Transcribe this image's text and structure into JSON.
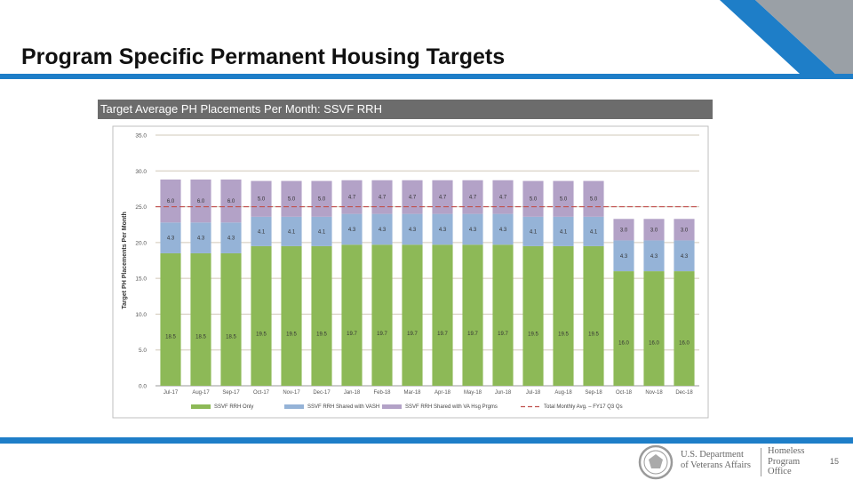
{
  "slide": {
    "title": "Program Specific Permanent Housing Targets",
    "page_number": "15"
  },
  "footer": {
    "dept_line1": "U.S. Department",
    "dept_line2": "of Veterans Affairs",
    "office_line1": "Homeless",
    "office_line2": "Program",
    "office_line3": "Office"
  },
  "colors": {
    "brand_blue": "#1e7ec8",
    "corner_gray": "#9aa0a6",
    "series_rrh_only": "#8db957",
    "series_vash": "#95b3d7",
    "series_va_grants": "#b3a2c7",
    "target_line": "#c0504d"
  },
  "chart_data": {
    "type": "bar",
    "stacked": true,
    "title": "Target Average PH Placements Per Month: SSVF RRH",
    "xlabel": "",
    "ylabel": "Target PH Placements Per Month",
    "ylim": [
      0,
      35
    ],
    "yticks": [
      "0.0",
      "5.0",
      "10.0",
      "15.0",
      "20.0",
      "25.0",
      "30.0",
      "35.0"
    ],
    "grid": true,
    "legend_position": "bottom",
    "categories": [
      "Jul-17",
      "Aug-17",
      "Sep-17",
      "Oct-17",
      "Nov-17",
      "Dec-17",
      "Jan-18",
      "Feb-18",
      "Mar-18",
      "Apr-18",
      "May-18",
      "Jun-18",
      "Jul-18",
      "Aug-18",
      "Sep-18",
      "Oct-18",
      "Nov-18",
      "Dec-18"
    ],
    "series": [
      {
        "name": "SSVF RRH Only",
        "color": "#8db957",
        "values": [
          18.5,
          18.5,
          18.5,
          19.5,
          19.5,
          19.5,
          19.7,
          19.7,
          19.7,
          19.7,
          19.7,
          19.7,
          19.5,
          19.5,
          19.5,
          16.0,
          16.0,
          16.0
        ],
        "labels": [
          "18.5",
          "18.5",
          "18.5",
          "19.5",
          "19.5",
          "19.5",
          "19.7",
          "19.7",
          "19.7",
          "19.7",
          "19.7",
          "19.7",
          "19.5",
          "19.5",
          "19.5",
          "16.0",
          "16.0",
          "16.0"
        ]
      },
      {
        "name": "SSVF RRH Shared with VASH",
        "color": "#95b3d7",
        "values": [
          4.3,
          4.3,
          4.3,
          4.1,
          4.1,
          4.1,
          4.3,
          4.3,
          4.3,
          4.3,
          4.3,
          4.3,
          4.1,
          4.1,
          4.1,
          4.3,
          4.3,
          4.3
        ],
        "labels": [
          "4.3",
          "4.3",
          "4.3",
          "4.1",
          "4.1",
          "4.1",
          "4.3",
          "4.3",
          "4.3",
          "4.3",
          "4.3",
          "4.3",
          "4.1",
          "4.1",
          "4.1",
          "4.3",
          "4.3",
          "4.3"
        ]
      },
      {
        "name": "SSVF RRH Shared with VA Hsg Prgms",
        "color": "#b3a2c7",
        "values": [
          6.0,
          6.0,
          6.0,
          5.0,
          5.0,
          5.0,
          4.7,
          4.7,
          4.7,
          4.7,
          4.7,
          4.7,
          5.0,
          5.0,
          5.0,
          3.0,
          3.0,
          3.0
        ],
        "labels": [
          "6.0",
          "6.0",
          "6.0",
          "5.0",
          "5.0",
          "5.0",
          "4.7",
          "4.7",
          "4.7",
          "4.7",
          "4.7",
          "4.7",
          "5.0",
          "5.0",
          "5.0",
          "3.0",
          "3.0",
          "3.0"
        ]
      }
    ],
    "reference_line": {
      "name": "Total Monthly Avg. – FY17 Q3 Qs",
      "value": 25.0,
      "color": "#c0504d"
    }
  }
}
